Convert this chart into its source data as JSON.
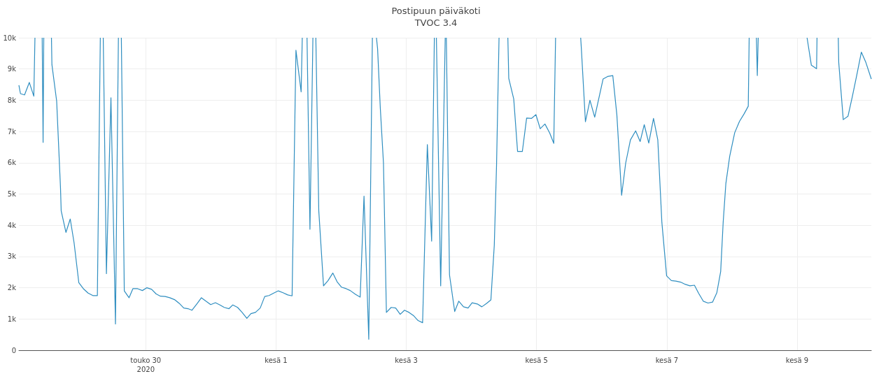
{
  "chart_data": {
    "type": "line",
    "title": "Postipuun päiväkoti",
    "subtitle": "TVOC 3.4",
    "color": "#2f8ec0",
    "grid": true,
    "marker": "none",
    "line_style": "solid",
    "x": [
      "2020-05-28T01:15",
      "2020-05-28T01:50",
      "2020-05-28T03:20",
      "2020-05-28T05:05",
      "2020-05-28T06:45",
      "2020-05-28T07:10",
      "2020-05-28T08:00",
      "2020-05-28T09:50",
      "2020-05-28T10:10",
      "2020-05-28T10:25",
      "2020-05-28T12:00",
      "2020-05-28T13:15",
      "2020-05-28T13:25",
      "2020-05-28T15:10",
      "2020-05-28T16:35",
      "2020-05-28T16:50",
      "2020-05-28T18:35",
      "2020-05-28T20:10",
      "2020-05-28T21:35",
      "2020-05-28T23:20",
      "2020-05-29T01:00",
      "2020-05-29T02:45",
      "2020-05-29T04:30",
      "2020-05-29T06:10",
      "2020-05-29T07:15",
      "2020-05-29T07:40",
      "2020-05-29T08:20",
      "2020-05-29T09:30",
      "2020-05-29T11:10",
      "2020-05-29T12:50",
      "2020-05-29T13:55",
      "2020-05-29T14:30",
      "2020-05-29T15:00",
      "2020-05-29T16:05",
      "2020-05-29T17:50",
      "2020-05-29T19:15",
      "2020-05-29T21:00",
      "2020-05-29T22:45",
      "2020-05-30T00:25",
      "2020-05-30T02:10",
      "2020-05-30T03:50",
      "2020-05-30T05:25",
      "2020-05-30T07:10",
      "2020-05-30T08:50",
      "2020-05-30T10:35",
      "2020-05-30T12:20",
      "2020-05-30T14:00",
      "2020-05-30T15:35",
      "2020-05-30T17:00",
      "2020-05-30T19:00",
      "2020-05-30T20:30",
      "2020-05-30T22:10",
      "2020-05-30T23:55",
      "2020-05-31T01:40",
      "2020-05-31T03:20",
      "2020-05-31T04:55",
      "2020-05-31T06:40",
      "2020-05-31T08:05",
      "2020-05-31T09:50",
      "2020-05-31T11:30",
      "2020-05-31T13:15",
      "2020-05-31T14:45",
      "2020-05-31T16:25",
      "2020-05-31T18:10",
      "2020-05-31T19:50",
      "2020-05-31T21:25",
      "2020-05-31T23:10",
      "2020-06-01T00:50",
      "2020-06-01T02:35",
      "2020-06-01T04:20",
      "2020-06-01T05:55",
      "2020-06-01T07:20",
      "2020-06-01T09:15",
      "2020-06-01T09:40",
      "2020-06-01T10:30",
      "2020-06-01T11:25",
      "2020-06-01T12:30",
      "2020-06-01T13:35",
      "2020-06-01T14:00",
      "2020-06-01T14:40",
      "2020-06-01T15:45",
      "2020-06-01T17:30",
      "2020-06-01T19:10",
      "2020-06-01T20:55",
      "2020-06-01T22:30",
      "2020-06-02T00:05",
      "2020-06-02T01:50",
      "2020-06-02T03:20",
      "2020-06-02T05:15",
      "2020-06-02T07:00",
      "2020-06-02T08:25",
      "2020-06-02T10:10",
      "2020-06-02T11:30",
      "2020-06-02T12:00",
      "2020-06-02T13:00",
      "2020-06-02T13:25",
      "2020-06-02T14:25",
      "2020-06-02T15:35",
      "2020-06-02T16:40",
      "2020-06-02T18:25",
      "2020-06-02T20:05",
      "2020-06-02T21:45",
      "2020-06-02T23:20",
      "2020-06-03T01:00",
      "2020-06-03T02:45",
      "2020-06-03T04:20",
      "2020-06-03T06:00",
      "2020-06-03T07:45",
      "2020-06-03T09:20",
      "2020-06-03T10:20",
      "2020-06-03T10:40",
      "2020-06-03T11:05",
      "2020-06-03T12:40",
      "2020-06-03T14:20",
      "2020-06-03T14:35",
      "2020-06-03T14:45",
      "2020-06-03T15:55",
      "2020-06-03T17:50",
      "2020-06-03T19:20",
      "2020-06-03T21:05",
      "2020-06-03T22:45",
      "2020-06-04T00:15",
      "2020-06-04T02:10",
      "2020-06-04T03:50",
      "2020-06-04T05:35",
      "2020-06-04T07:10",
      "2020-06-04T08:25",
      "2020-06-04T09:15",
      "2020-06-04T10:10",
      "2020-06-04T12:00",
      "2020-06-04T13:25",
      "2020-06-04T13:45",
      "2020-06-04T15:35",
      "2020-06-04T17:00",
      "2020-06-04T18:45",
      "2020-06-04T20:20",
      "2020-06-04T22:10",
      "2020-06-04T23:45",
      "2020-06-05T01:20",
      "2020-06-05T03:05",
      "2020-06-05T04:50",
      "2020-06-05T06:20",
      "2020-06-05T07:00",
      "2020-06-05T10:00",
      "2020-06-05T16:15",
      "2020-06-05T16:30",
      "2020-06-05T18:00",
      "2020-06-05T19:40",
      "2020-06-05T21:25",
      "2020-06-06T00:30",
      "2020-06-06T02:10",
      "2020-06-06T04:05",
      "2020-06-06T05:35",
      "2020-06-06T07:20",
      "2020-06-06T08:50",
      "2020-06-06T10:35",
      "2020-06-06T12:30",
      "2020-06-06T14:10",
      "2020-06-06T15:40",
      "2020-06-06T17:20",
      "2020-06-06T19:05",
      "2020-06-06T20:40",
      "2020-06-06T22:10",
      "2020-06-06T23:55",
      "2020-06-07T01:40",
      "2020-06-07T03:20",
      "2020-06-07T05:05",
      "2020-06-07T06:45",
      "2020-06-07T08:30",
      "2020-06-07T10:10",
      "2020-06-07T11:40",
      "2020-06-07T13:25",
      "2020-06-07T15:10",
      "2020-06-07T16:50",
      "2020-06-07T18:25",
      "2020-06-07T19:50",
      "2020-06-07T20:45",
      "2020-06-07T21:45",
      "2020-06-07T23:10",
      "2020-06-08T01:00",
      "2020-06-08T02:45",
      "2020-06-08T04:30",
      "2020-06-08T06:00",
      "2020-06-08T06:20",
      "2020-06-08T07:30",
      "2020-06-08T09:00",
      "2020-06-08T09:20",
      "2020-06-08T09:40",
      "2020-06-08T10:00",
      "2020-06-09T03:40",
      "2020-06-09T05:15",
      "2020-06-09T07:10",
      "2020-06-09T07:20",
      "2020-06-09T10:00",
      "2020-06-09T15:10",
      "2020-06-09T15:20",
      "2020-06-09T17:00",
      "2020-06-09T18:45",
      "2020-06-09T20:20",
      "2020-06-09T22:00",
      "2020-06-09T23:40",
      "2020-06-10T01:20",
      "2020-06-10T03:20"
    ],
    "values": [
      8480,
      8210,
      8170,
      8570,
      8130,
      10000,
      null,
      10000,
      6650,
      10000,
      null,
      10000,
      9140,
      7970,
      5190,
      4460,
      3770,
      4200,
      3440,
      2160,
      1970,
      1830,
      1750,
      1750,
      10000,
      null,
      10000,
      2450,
      8080,
      840,
      10000,
      null,
      10000,
      1900,
      1680,
      1970,
      1970,
      1910,
      2000,
      1950,
      1800,
      1730,
      1720,
      1680,
      1620,
      1500,
      1350,
      1330,
      1280,
      1500,
      1680,
      1570,
      1460,
      1520,
      1450,
      1370,
      1330,
      1450,
      1370,
      1210,
      1020,
      1170,
      1210,
      1350,
      1720,
      1750,
      1830,
      1900,
      1840,
      1770,
      1740,
      9600,
      8270,
      10000,
      null,
      10000,
      3870,
      10000,
      null,
      10000,
      4460,
      2060,
      2230,
      2470,
      2190,
      2020,
      1970,
      1910,
      1790,
      1700,
      4930,
      350,
      10000,
      null,
      10000,
      9650,
      7750,
      5990,
      1210,
      1370,
      1350,
      1150,
      1280,
      1210,
      1100,
      950,
      880,
      6580,
      3490,
      10000,
      null,
      10000,
      2060,
      10000,
      null,
      10000,
      2410,
      1240,
      1570,
      1390,
      1350,
      1520,
      1480,
      1390,
      1500,
      1610,
      3360,
      5920,
      10000,
      null,
      10000,
      8700,
      8040,
      6360,
      6360,
      7430,
      7420,
      7540,
      7090,
      7240,
      6950,
      6620,
      10000,
      null,
      10000,
      9650,
      7310,
      8000,
      7460,
      8680,
      8760,
      8790,
      7530,
      4960,
      5990,
      6730,
      7020,
      6680,
      7220,
      6630,
      7420,
      6730,
      4090,
      2380,
      2230,
      2210,
      2180,
      2110,
      2060,
      2080,
      1830,
      1570,
      1510,
      1540,
      1840,
      2520,
      4090,
      5340,
      6210,
      6960,
      7320,
      7570,
      7810,
      10000,
      null,
      10000,
      8790,
      10000,
      null,
      10000,
      9120,
      9010,
      10000,
      null,
      10000,
      9210,
      7380,
      7490,
      8110,
      8810,
      9540,
      9210,
      8680
    ],
    "xlim": [
      "2020-05-28T01:15",
      "2020-06-10T03:20"
    ],
    "xticks": [
      {
        "value": "2020-05-30",
        "label": "touko 30\n2020"
      },
      {
        "value": "2020-06-01",
        "label": "kesä 1"
      },
      {
        "value": "2020-06-03",
        "label": "kesä 3"
      },
      {
        "value": "2020-06-05",
        "label": "kesä 5"
      },
      {
        "value": "2020-06-07",
        "label": "kesä 7"
      },
      {
        "value": "2020-06-09",
        "label": "kesä 9"
      }
    ],
    "ylim": [
      0,
      10000
    ],
    "yticks": [
      0,
      {
        "value": 1000,
        "label": "1k"
      },
      {
        "value": 2000,
        "label": "2k"
      },
      {
        "value": 3000,
        "label": "3k"
      },
      {
        "value": 4000,
        "label": "4k"
      },
      {
        "value": 5000,
        "label": "5k"
      },
      {
        "value": 6000,
        "label": "6k"
      },
      {
        "value": 7000,
        "label": "7k"
      },
      {
        "value": 8000,
        "label": "8k"
      },
      {
        "value": 9000,
        "label": "9k"
      },
      {
        "value": 10000,
        "label": "10k"
      }
    ]
  }
}
